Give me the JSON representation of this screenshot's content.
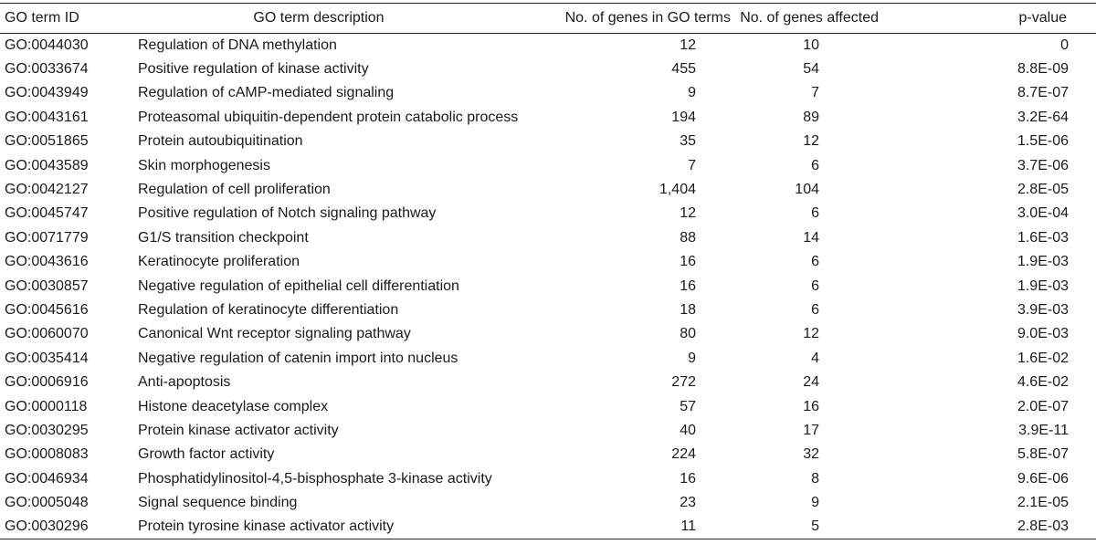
{
  "table": {
    "headers": {
      "id": "GO term ID",
      "description": "GO term description",
      "genes_in_terms": "No. of genes in GO terms",
      "genes_affected": "No. of genes affected",
      "p_value": "p-value"
    },
    "rows": [
      {
        "id": "GO:0044030",
        "description": "Regulation of DNA methylation",
        "genes_in_terms": "12",
        "genes_affected": "10",
        "p_value": "0"
      },
      {
        "id": "GO:0033674",
        "description": "Positive regulation of kinase activity",
        "genes_in_terms": "455",
        "genes_affected": "54",
        "p_value": "8.8E-09"
      },
      {
        "id": "GO:0043949",
        "description": "Regulation of cAMP-mediated signaling",
        "genes_in_terms": "9",
        "genes_affected": "7",
        "p_value": "8.7E-07"
      },
      {
        "id": "GO:0043161",
        "description": "Proteasomal ubiquitin-dependent protein catabolic process",
        "genes_in_terms": "194",
        "genes_affected": "89",
        "p_value": "3.2E-64"
      },
      {
        "id": "GO:0051865",
        "description": "Protein autoubiquitination",
        "genes_in_terms": "35",
        "genes_affected": "12",
        "p_value": "1.5E-06"
      },
      {
        "id": "GO:0043589",
        "description": "Skin morphogenesis",
        "genes_in_terms": "7",
        "genes_affected": "6",
        "p_value": "3.7E-06"
      },
      {
        "id": "GO:0042127",
        "description": "Regulation of cell proliferation",
        "genes_in_terms": "1,404",
        "genes_affected": "104",
        "p_value": "2.8E-05"
      },
      {
        "id": "GO:0045747",
        "description": "Positive regulation of Notch signaling pathway",
        "genes_in_terms": "12",
        "genes_affected": "6",
        "p_value": "3.0E-04"
      },
      {
        "id": "GO:0071779",
        "description": "G1/S transition checkpoint",
        "genes_in_terms": "88",
        "genes_affected": "14",
        "p_value": "1.6E-03"
      },
      {
        "id": "GO:0043616",
        "description": "Keratinocyte proliferation",
        "genes_in_terms": "16",
        "genes_affected": "6",
        "p_value": "1.9E-03"
      },
      {
        "id": "GO:0030857",
        "description": "Negative regulation of epithelial cell differentiation",
        "genes_in_terms": "16",
        "genes_affected": "6",
        "p_value": "1.9E-03"
      },
      {
        "id": "GO:0045616",
        "description": "Regulation of keratinocyte differentiation",
        "genes_in_terms": "18",
        "genes_affected": "6",
        "p_value": "3.9E-03"
      },
      {
        "id": "GO:0060070",
        "description": "Canonical Wnt receptor signaling pathway",
        "genes_in_terms": "80",
        "genes_affected": "12",
        "p_value": "9.0E-03"
      },
      {
        "id": "GO:0035414",
        "description": "Negative regulation of catenin import into nucleus",
        "genes_in_terms": "9",
        "genes_affected": "4",
        "p_value": "1.6E-02"
      },
      {
        "id": "GO:0006916",
        "description": "Anti-apoptosis",
        "genes_in_terms": "272",
        "genes_affected": "24",
        "p_value": "4.6E-02"
      },
      {
        "id": "GO:0000118",
        "description": "Histone deacetylase complex",
        "genes_in_terms": "57",
        "genes_affected": "16",
        "p_value": "2.0E-07"
      },
      {
        "id": "GO:0030295",
        "description": "Protein kinase activator activity",
        "genes_in_terms": "40",
        "genes_affected": "17",
        "p_value": "3.9E-11"
      },
      {
        "id": "GO:0008083",
        "description": "Growth factor activity",
        "genes_in_terms": "224",
        "genes_affected": "32",
        "p_value": "5.8E-07"
      },
      {
        "id": "GO:0046934",
        "description": "Phosphatidylinositol-4,5-bisphosphate 3-kinase activity",
        "genes_in_terms": "16",
        "genes_affected": "8",
        "p_value": "9.6E-06"
      },
      {
        "id": "GO:0005048",
        "description": "Signal sequence binding",
        "genes_in_terms": "23",
        "genes_affected": "9",
        "p_value": "2.1E-05"
      },
      {
        "id": "GO:0030296",
        "description": "Protein tyrosine kinase activator activity",
        "genes_in_terms": "11",
        "genes_affected": "5",
        "p_value": "2.8E-03"
      }
    ]
  }
}
